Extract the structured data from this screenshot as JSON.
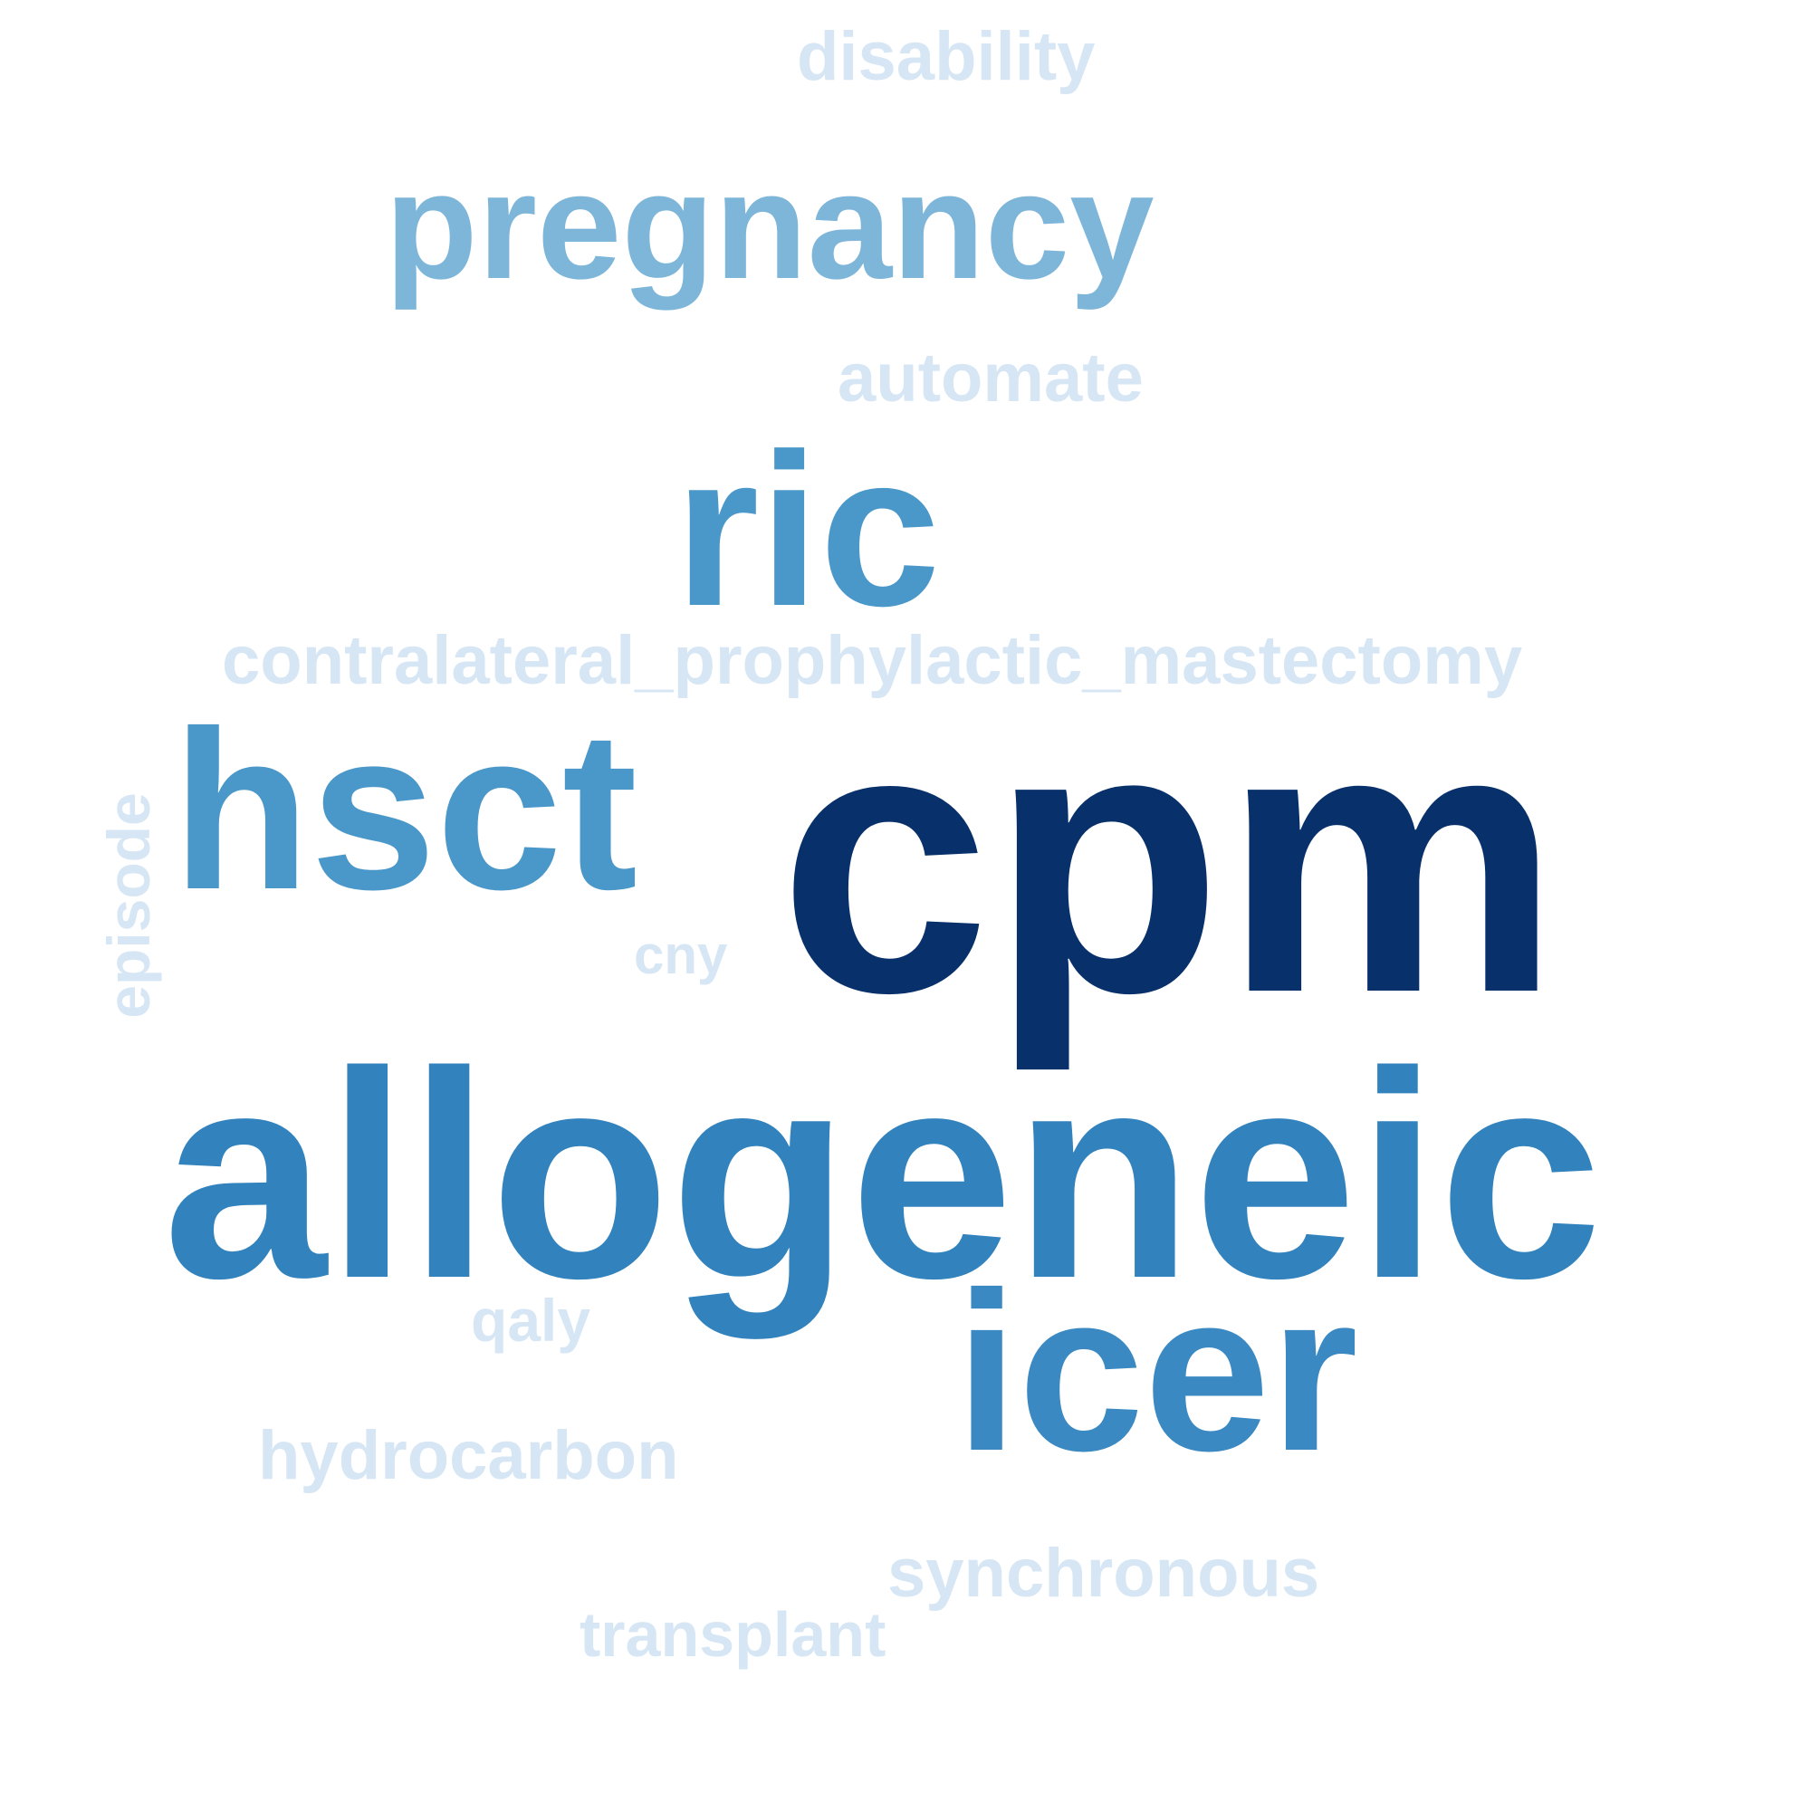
{
  "palette": {
    "darkest": "#08306b",
    "dark": "#3182bd",
    "mid": "#4a97c9",
    "medium_light": "#7eb6da",
    "light": "#d6e6f4"
  },
  "words": {
    "disability": {
      "text": "disability",
      "color": "#d6e6f4"
    },
    "pregnancy": {
      "text": "pregnancy",
      "color": "#7eb6da"
    },
    "automate": {
      "text": "automate",
      "color": "#d6e6f4"
    },
    "ric": {
      "text": "ric",
      "color": "#4a97c9"
    },
    "cpm_long": {
      "text": "contralateral_prophylactic_mastectomy",
      "color": "#d6e6f4"
    },
    "hsct": {
      "text": "hsct",
      "color": "#4a97c9"
    },
    "cpm": {
      "text": "cpm",
      "color": "#08306b"
    },
    "cny": {
      "text": "cny",
      "color": "#d6e6f4"
    },
    "episode": {
      "text": "episode",
      "color": "#d6e6f4"
    },
    "allogeneic": {
      "text": "allogeneic",
      "color": "#3182bd"
    },
    "icer": {
      "text": "icer",
      "color": "#3a89c2"
    },
    "qaly": {
      "text": "qaly",
      "color": "#d6e6f4"
    },
    "hydrocarbon": {
      "text": "hydrocarbon",
      "color": "#d6e6f4"
    },
    "synchronous": {
      "text": "synchronous",
      "color": "#d6e6f4"
    },
    "transplant": {
      "text": "transplant",
      "color": "#d6e6f4"
    }
  }
}
